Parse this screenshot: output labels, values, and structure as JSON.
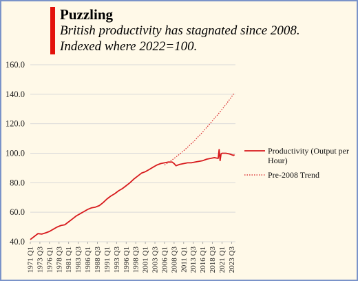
{
  "title": "Puzzling",
  "subtitle_lines": [
    "British productivity has stagnated since 2008.",
    "Indexed where 2022=100."
  ],
  "chart_data": {
    "type": "line",
    "title": "Puzzling",
    "subtitle": "British productivity has stagnated since 2008. Indexed where 2022=100.",
    "xlabel": "",
    "ylabel": "",
    "ylim": [
      40,
      160
    ],
    "yticks": [
      40,
      60,
      80,
      100,
      120,
      140,
      160
    ],
    "ytick_labels": [
      "40.0",
      "60.0",
      "80.0",
      "100.0",
      "120.0",
      "140.0",
      "160.0"
    ],
    "xlim": [
      1971.0,
      2024.5
    ],
    "xtick_labels": [
      "1971 Q1",
      "1973 Q3",
      "1976 Q1",
      "1978 Q3",
      "1981 Q1",
      "1983 Q3",
      "1986 Q1",
      "1988 Q3",
      "1991 Q1",
      "1993 Q3",
      "1996 Q1",
      "1998 Q3",
      "2001 Q1",
      "2003 Q3",
      "2006 Q1",
      "2008 Q3",
      "2011 Q1",
      "2013 Q3",
      "2016 Q1",
      "2018 Q3",
      "2021 Q1",
      "2023 Q3"
    ],
    "grid": true,
    "legend_position": "right",
    "colors": {
      "series": "#d7191c",
      "background": "#fff9e8",
      "accent": "#e3120b",
      "grid": "#d9d9d9"
    },
    "series": [
      {
        "name": "Productivity (Output per Hour)",
        "style": "solid",
        "x": [
          "1971 Q1",
          "1972 Q1",
          "1973 Q1",
          "1974 Q1",
          "1975 Q1",
          "1976 Q1",
          "1977 Q1",
          "1978 Q1",
          "1979 Q1",
          "1980 Q1",
          "1981 Q1",
          "1982 Q1",
          "1983 Q1",
          "1984 Q1",
          "1985 Q1",
          "1986 Q1",
          "1987 Q1",
          "1988 Q1",
          "1989 Q1",
          "1990 Q1",
          "1991 Q1",
          "1992 Q1",
          "1993 Q1",
          "1994 Q1",
          "1995 Q1",
          "1996 Q1",
          "1997 Q1",
          "1998 Q1",
          "1999 Q1",
          "2000 Q1",
          "2001 Q1",
          "2002 Q1",
          "2003 Q1",
          "2004 Q1",
          "2005 Q1",
          "2006 Q1",
          "2007 Q1",
          "2008 Q1",
          "2008 Q3",
          "2009 Q1",
          "2009 Q3",
          "2010 Q1",
          "2011 Q1",
          "2012 Q1",
          "2013 Q1",
          "2014 Q1",
          "2015 Q1",
          "2016 Q1",
          "2017 Q1",
          "2018 Q1",
          "2019 Q1",
          "2020 Q1",
          "2020 Q2",
          "2020 Q3",
          "2020 Q4",
          "2021 Q1",
          "2022 Q1",
          "2023 Q1",
          "2023 Q3",
          "2024 Q1",
          "2024 Q2"
        ],
        "values": [
          41.5,
          43.5,
          45.5,
          45.2,
          46.0,
          47.0,
          48.5,
          50.0,
          51.0,
          51.5,
          53.5,
          55.5,
          57.5,
          59.0,
          60.5,
          62.0,
          63.0,
          63.5,
          64.5,
          66.5,
          69.0,
          71.0,
          72.5,
          74.5,
          76.0,
          78.0,
          80.0,
          82.5,
          84.5,
          86.5,
          87.5,
          89.0,
          90.5,
          92.0,
          93.0,
          93.5,
          94.0,
          94.0,
          93.0,
          91.5,
          92.0,
          92.5,
          93.0,
          93.5,
          93.5,
          94.0,
          94.5,
          95.0,
          96.0,
          96.5,
          97.0,
          96.5,
          102.5,
          95.0,
          99.5,
          100.0,
          100.0,
          99.5,
          99.0,
          98.5,
          99.0
        ]
      },
      {
        "name": "Pre-2008 Trend",
        "style": "dotted",
        "x": [
          "2006 Q1",
          "2008 Q1",
          "2010 Q1",
          "2012 Q1",
          "2014 Q1",
          "2016 Q1",
          "2018 Q1",
          "2020 Q1",
          "2022 Q1",
          "2024 Q2"
        ],
        "values": [
          92.0,
          95.5,
          99.5,
          104.0,
          109.0,
          114.5,
          120.5,
          126.5,
          133.0,
          141.0
        ]
      }
    ]
  }
}
